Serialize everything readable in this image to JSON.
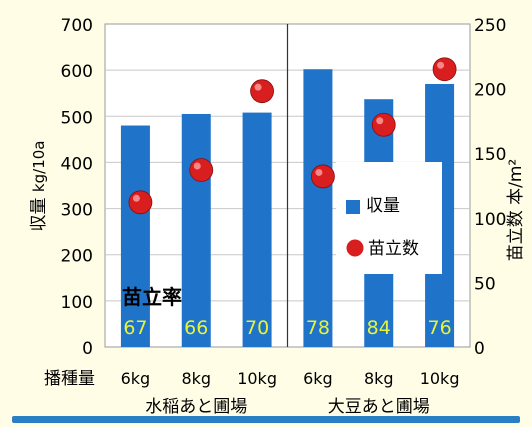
{
  "chart_data": {
    "type": "bar",
    "y_left": {
      "label": "収量 kg/10a",
      "label_main": "収量",
      "label_unit": "kg/10a",
      "lim": [
        0,
        700
      ],
      "ticks": [
        0,
        100,
        200,
        300,
        400,
        500,
        600,
        700
      ]
    },
    "y_right": {
      "label": "苗立数 本/m²",
      "label_main": "苗立数",
      "label_unit": "本/m²",
      "lim": [
        0,
        250
      ],
      "ticks": [
        0,
        50,
        100,
        150,
        200,
        250
      ]
    },
    "x_prefix": "播種量",
    "categories": [
      "6kg",
      "8kg",
      "10kg",
      "6kg",
      "8kg",
      "10kg"
    ],
    "groups": [
      {
        "label": "水稲あと圃場",
        "members": [
          0,
          1,
          2
        ]
      },
      {
        "label": "大豆あと圃場",
        "members": [
          3,
          4,
          5
        ]
      }
    ],
    "series": [
      {
        "name": "収量",
        "type": "bar",
        "axis": "left",
        "values": [
          480,
          505,
          508,
          602,
          537,
          570
        ],
        "color": "#1f73c8"
      },
      {
        "name": "苗立数",
        "type": "scatter",
        "axis": "right",
        "values": [
          112,
          137,
          198,
          132,
          172,
          215
        ],
        "color": "#d81e1e"
      }
    ],
    "annotation_title": "苗立率",
    "annotation_values": [
      "67",
      "66",
      "70",
      "78",
      "84",
      "76"
    ],
    "annotation_color": "#e7f23a",
    "legend_position": "right-middle",
    "grid": true,
    "divider_between_groups": true
  }
}
